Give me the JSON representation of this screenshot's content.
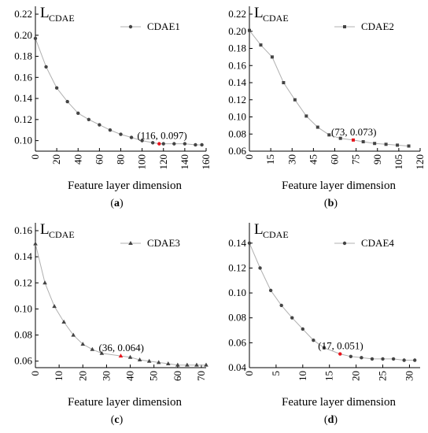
{
  "chart_data": [
    {
      "id": "a",
      "caption_letter": "a",
      "type": "scatter",
      "marker": "circle",
      "ylabel": "L",
      "ylabel_sub": "CDAE",
      "xlabel": "Feature layer dimension",
      "series": [
        {
          "name": "CDAE1",
          "x": [
            0,
            10,
            20,
            30,
            40,
            50,
            60,
            70,
            80,
            90,
            100,
            110,
            116,
            120,
            130,
            140,
            150,
            156
          ],
          "y": [
            0.197,
            0.17,
            0.15,
            0.137,
            0.126,
            0.12,
            0.115,
            0.11,
            0.106,
            0.103,
            0.1,
            0.098,
            0.097,
            0.097,
            0.097,
            0.097,
            0.096,
            0.096
          ]
        }
      ],
      "highlight": {
        "x": 116,
        "y": 0.097,
        "label": "(116, 0.097)"
      },
      "xlim": [
        0,
        160
      ],
      "ylim": [
        0.09,
        0.22
      ],
      "xticks": [
        0,
        20,
        40,
        60,
        80,
        100,
        120,
        140,
        160
      ],
      "xtick_labels": [
        "0",
        "20",
        "40",
        "60",
        "80",
        "100",
        "120",
        "140",
        "160"
      ],
      "yticks": [
        0.1,
        0.12,
        0.14,
        0.16,
        0.18,
        0.2,
        0.22
      ],
      "ytick_labels": [
        "0.10",
        "0.12",
        "0.14",
        "0.16",
        "0.18",
        "0.20",
        "0.22"
      ],
      "grid": false,
      "legend_position": "top-right"
    },
    {
      "id": "b",
      "caption_letter": "b",
      "type": "scatter",
      "marker": "square",
      "ylabel": "L",
      "ylabel_sub": "CDAE",
      "xlabel": "Feature layer dimension",
      "series": [
        {
          "name": "CDAE2",
          "x": [
            0,
            8,
            16,
            24,
            32,
            40,
            48,
            56,
            64,
            73,
            80,
            88,
            96,
            104,
            112
          ],
          "y": [
            0.201,
            0.184,
            0.17,
            0.14,
            0.12,
            0.101,
            0.088,
            0.079,
            0.075,
            0.073,
            0.071,
            0.069,
            0.068,
            0.067,
            0.066
          ]
        }
      ],
      "highlight": {
        "x": 73,
        "y": 0.073,
        "label": "(73, 0.073)"
      },
      "xlim": [
        0,
        120
      ],
      "ylim": [
        0.06,
        0.22
      ],
      "xticks": [
        0,
        15,
        30,
        45,
        60,
        75,
        90,
        105,
        120
      ],
      "xtick_labels": [
        "0",
        "15",
        "30",
        "45",
        "60",
        "75",
        "90",
        "105",
        "120"
      ],
      "yticks": [
        0.06,
        0.08,
        0.1,
        0.12,
        0.14,
        0.16,
        0.18,
        0.2,
        0.22
      ],
      "ytick_labels": [
        "0.06",
        "0.08",
        "0.10",
        "0.12",
        "0.14",
        "0.16",
        "0.18",
        "0.20",
        "0.22"
      ],
      "grid": false,
      "legend_position": "top-right"
    },
    {
      "id": "c",
      "caption_letter": "c",
      "type": "scatter",
      "marker": "triangle",
      "ylabel": "L",
      "ylabel_sub": "CDAE",
      "xlabel": "Feature layer dimension",
      "series": [
        {
          "name": "CDAE3",
          "x": [
            0,
            4,
            8,
            12,
            16,
            20,
            24,
            28,
            36,
            40,
            44,
            48,
            52,
            56,
            60,
            64,
            68,
            72
          ],
          "y": [
            0.15,
            0.12,
            0.102,
            0.09,
            0.08,
            0.073,
            0.069,
            0.066,
            0.064,
            0.063,
            0.061,
            0.06,
            0.059,
            0.058,
            0.057,
            0.057,
            0.057,
            0.057
          ]
        }
      ],
      "highlight": {
        "x": 36,
        "y": 0.064,
        "label": "(36, 0.064)"
      },
      "xlim": [
        0,
        72
      ],
      "ylim": [
        0.055,
        0.16
      ],
      "xticks": [
        0,
        10,
        20,
        30,
        40,
        50,
        60,
        70
      ],
      "xtick_labels": [
        "0",
        "10",
        "20",
        "30",
        "40",
        "50",
        "60",
        "70"
      ],
      "yticks": [
        0.06,
        0.08,
        0.1,
        0.12,
        0.14,
        0.16
      ],
      "ytick_labels": [
        "0.06",
        "0.08",
        "0.10",
        "0.12",
        "0.14",
        "0.16"
      ],
      "grid": false,
      "legend_position": "top-right"
    },
    {
      "id": "d",
      "caption_letter": "d",
      "type": "scatter",
      "marker": "circle",
      "ylabel": "L",
      "ylabel_sub": "CDAE",
      "xlabel": "Feature layer dimension",
      "series": [
        {
          "name": "CDAE4",
          "x": [
            0,
            2,
            4,
            6,
            8,
            10,
            12,
            14,
            17,
            19,
            21,
            23,
            25,
            27,
            29,
            31
          ],
          "y": [
            0.14,
            0.12,
            0.102,
            0.09,
            0.08,
            0.071,
            0.062,
            0.056,
            0.051,
            0.049,
            0.048,
            0.047,
            0.047,
            0.047,
            0.046,
            0.046
          ]
        }
      ],
      "highlight": {
        "x": 17,
        "y": 0.051,
        "label": "(17, 0.051)"
      },
      "xlim": [
        0,
        32
      ],
      "ylim": [
        0.04,
        0.15
      ],
      "xticks": [
        0,
        5,
        10,
        15,
        20,
        25,
        30
      ],
      "xtick_labels": [
        "0",
        "5",
        "10",
        "15",
        "20",
        "25",
        "30"
      ],
      "yticks": [
        0.04,
        0.06,
        0.08,
        0.1,
        0.12,
        0.14
      ],
      "ytick_labels": [
        "0.04",
        "0.06",
        "0.08",
        "0.10",
        "0.12",
        "0.14"
      ],
      "grid": false,
      "legend_position": "top-right"
    }
  ],
  "style": {
    "line_color": "#b0b0b0",
    "marker_color": "#444444",
    "highlight_color": "#e8141c",
    "axis_color": "#000000"
  }
}
